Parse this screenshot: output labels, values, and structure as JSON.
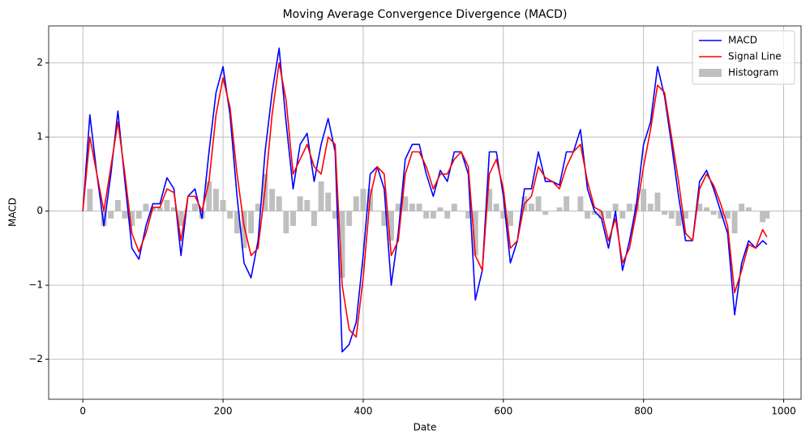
{
  "chart_data": {
    "type": "line",
    "title": "Moving Average Convergence Divergence (MACD)",
    "x_label": "Date",
    "y_label": "MACD",
    "x": [
      0,
      10,
      20,
      30,
      40,
      50,
      60,
      70,
      80,
      90,
      100,
      110,
      120,
      130,
      140,
      150,
      160,
      170,
      180,
      190,
      200,
      210,
      220,
      230,
      240,
      250,
      260,
      270,
      280,
      290,
      300,
      310,
      320,
      330,
      340,
      350,
      360,
      370,
      380,
      390,
      400,
      410,
      420,
      430,
      440,
      450,
      460,
      470,
      480,
      490,
      500,
      510,
      520,
      530,
      540,
      550,
      560,
      570,
      580,
      590,
      600,
      610,
      620,
      630,
      640,
      650,
      660,
      670,
      680,
      690,
      700,
      710,
      720,
      730,
      740,
      750,
      760,
      770,
      780,
      790,
      800,
      810,
      820,
      830,
      840,
      850,
      860,
      870,
      880,
      890,
      900,
      910,
      920,
      930,
      940,
      950,
      960,
      970,
      976
    ],
    "series": [
      {
        "name": "MACD",
        "color": "#0000ff",
        "kind": "line",
        "values": [
          0,
          1.3,
          0.5,
          -0.2,
          0.5,
          1.35,
          0.4,
          -0.5,
          -0.65,
          -0.2,
          0.1,
          0.1,
          0.45,
          0.3,
          -0.6,
          0.2,
          0.3,
          -0.1,
          0.8,
          1.6,
          1.95,
          1.3,
          0.2,
          -0.7,
          -0.9,
          -0.4,
          0.8,
          1.6,
          2.2,
          1.2,
          0.3,
          0.9,
          1.05,
          0.4,
          0.9,
          1.25,
          0.8,
          -1.9,
          -1.8,
          -1.5,
          -0.6,
          0.5,
          0.6,
          0.3,
          -1.0,
          -0.3,
          0.7,
          0.9,
          0.9,
          0.5,
          0.2,
          0.55,
          0.4,
          0.8,
          0.8,
          0.5,
          -1.2,
          -0.8,
          0.8,
          0.8,
          0.2,
          -0.7,
          -0.4,
          0.3,
          0.3,
          0.8,
          0.4,
          0.4,
          0.35,
          0.8,
          0.8,
          1.1,
          0.3,
          0.0,
          -0.1,
          -0.5,
          0.0,
          -0.8,
          -0.4,
          0.1,
          0.9,
          1.2,
          1.95,
          1.55,
          0.9,
          0.2,
          -0.4,
          -0.4,
          0.4,
          0.55,
          0.3,
          0.0,
          -0.3,
          -1.4,
          -0.7,
          -0.4,
          -0.5,
          -0.4,
          -0.45
        ]
      },
      {
        "name": "Signal Line",
        "color": "#ff0000",
        "kind": "line",
        "values": [
          0,
          1.0,
          0.5,
          0.0,
          0.6,
          1.2,
          0.5,
          -0.3,
          -0.55,
          -0.3,
          0.05,
          0.05,
          0.3,
          0.25,
          -0.4,
          0.2,
          0.2,
          0.0,
          0.4,
          1.3,
          1.8,
          1.4,
          0.5,
          -0.2,
          -0.6,
          -0.5,
          0.3,
          1.3,
          2.0,
          1.5,
          0.5,
          0.7,
          0.9,
          0.6,
          0.5,
          1.0,
          0.9,
          -1.0,
          -1.6,
          -1.7,
          -0.9,
          0.2,
          0.6,
          0.5,
          -0.6,
          -0.4,
          0.5,
          0.8,
          0.8,
          0.6,
          0.3,
          0.5,
          0.5,
          0.7,
          0.8,
          0.6,
          -0.6,
          -0.8,
          0.5,
          0.7,
          0.3,
          -0.5,
          -0.4,
          0.1,
          0.2,
          0.6,
          0.45,
          0.4,
          0.3,
          0.6,
          0.8,
          0.9,
          0.4,
          0.05,
          0.0,
          -0.4,
          -0.1,
          -0.7,
          -0.5,
          0.0,
          0.6,
          1.1,
          1.7,
          1.6,
          1.0,
          0.4,
          -0.3,
          -0.4,
          0.3,
          0.5,
          0.35,
          0.1,
          -0.2,
          -1.1,
          -0.8,
          -0.45,
          -0.5,
          -0.25,
          -0.35
        ]
      },
      {
        "name": "Histogram",
        "color": "#bfbfbf",
        "kind": "bar",
        "values": [
          0,
          0.3,
          0,
          -0.2,
          -0.1,
          0.15,
          -0.1,
          -0.2,
          -0.1,
          0.1,
          0.05,
          0.05,
          0.15,
          0.05,
          -0.2,
          0,
          0.1,
          -0.1,
          0.4,
          0.3,
          0.15,
          -0.1,
          -0.3,
          -0.5,
          -0.3,
          0.1,
          0.5,
          0.3,
          0.2,
          -0.3,
          -0.2,
          0.2,
          0.15,
          -0.2,
          0.4,
          0.25,
          -0.1,
          -0.9,
          -0.2,
          0.2,
          0.3,
          0.3,
          0,
          -0.2,
          -0.4,
          0.1,
          0.2,
          0.1,
          0.1,
          -0.1,
          -0.1,
          0.05,
          -0.1,
          0.1,
          0,
          -0.1,
          -0.6,
          0,
          0.3,
          0.1,
          -0.1,
          -0.2,
          0,
          0.2,
          0.1,
          0.2,
          -0.05,
          0,
          0.05,
          0.2,
          0,
          0.2,
          -0.1,
          -0.05,
          -0.1,
          -0.1,
          0.1,
          -0.1,
          0.1,
          0.1,
          0.3,
          0.1,
          0.25,
          -0.05,
          -0.1,
          -0.2,
          -0.1,
          0,
          0.1,
          0.05,
          -0.05,
          -0.1,
          -0.1,
          -0.3,
          0.1,
          0.05,
          0,
          -0.15,
          -0.1
        ]
      }
    ],
    "xlim": [
      -48.8,
      1024.8
    ],
    "ylim": [
      -2.54,
      2.5
    ],
    "xticks": [
      0,
      200,
      400,
      600,
      800,
      1000
    ],
    "yticks": [
      {
        "value": -2,
        "label": "−2"
      },
      {
        "value": -1,
        "label": "−1"
      },
      0,
      1,
      2
    ],
    "grid": true,
    "legend": "upper right"
  }
}
